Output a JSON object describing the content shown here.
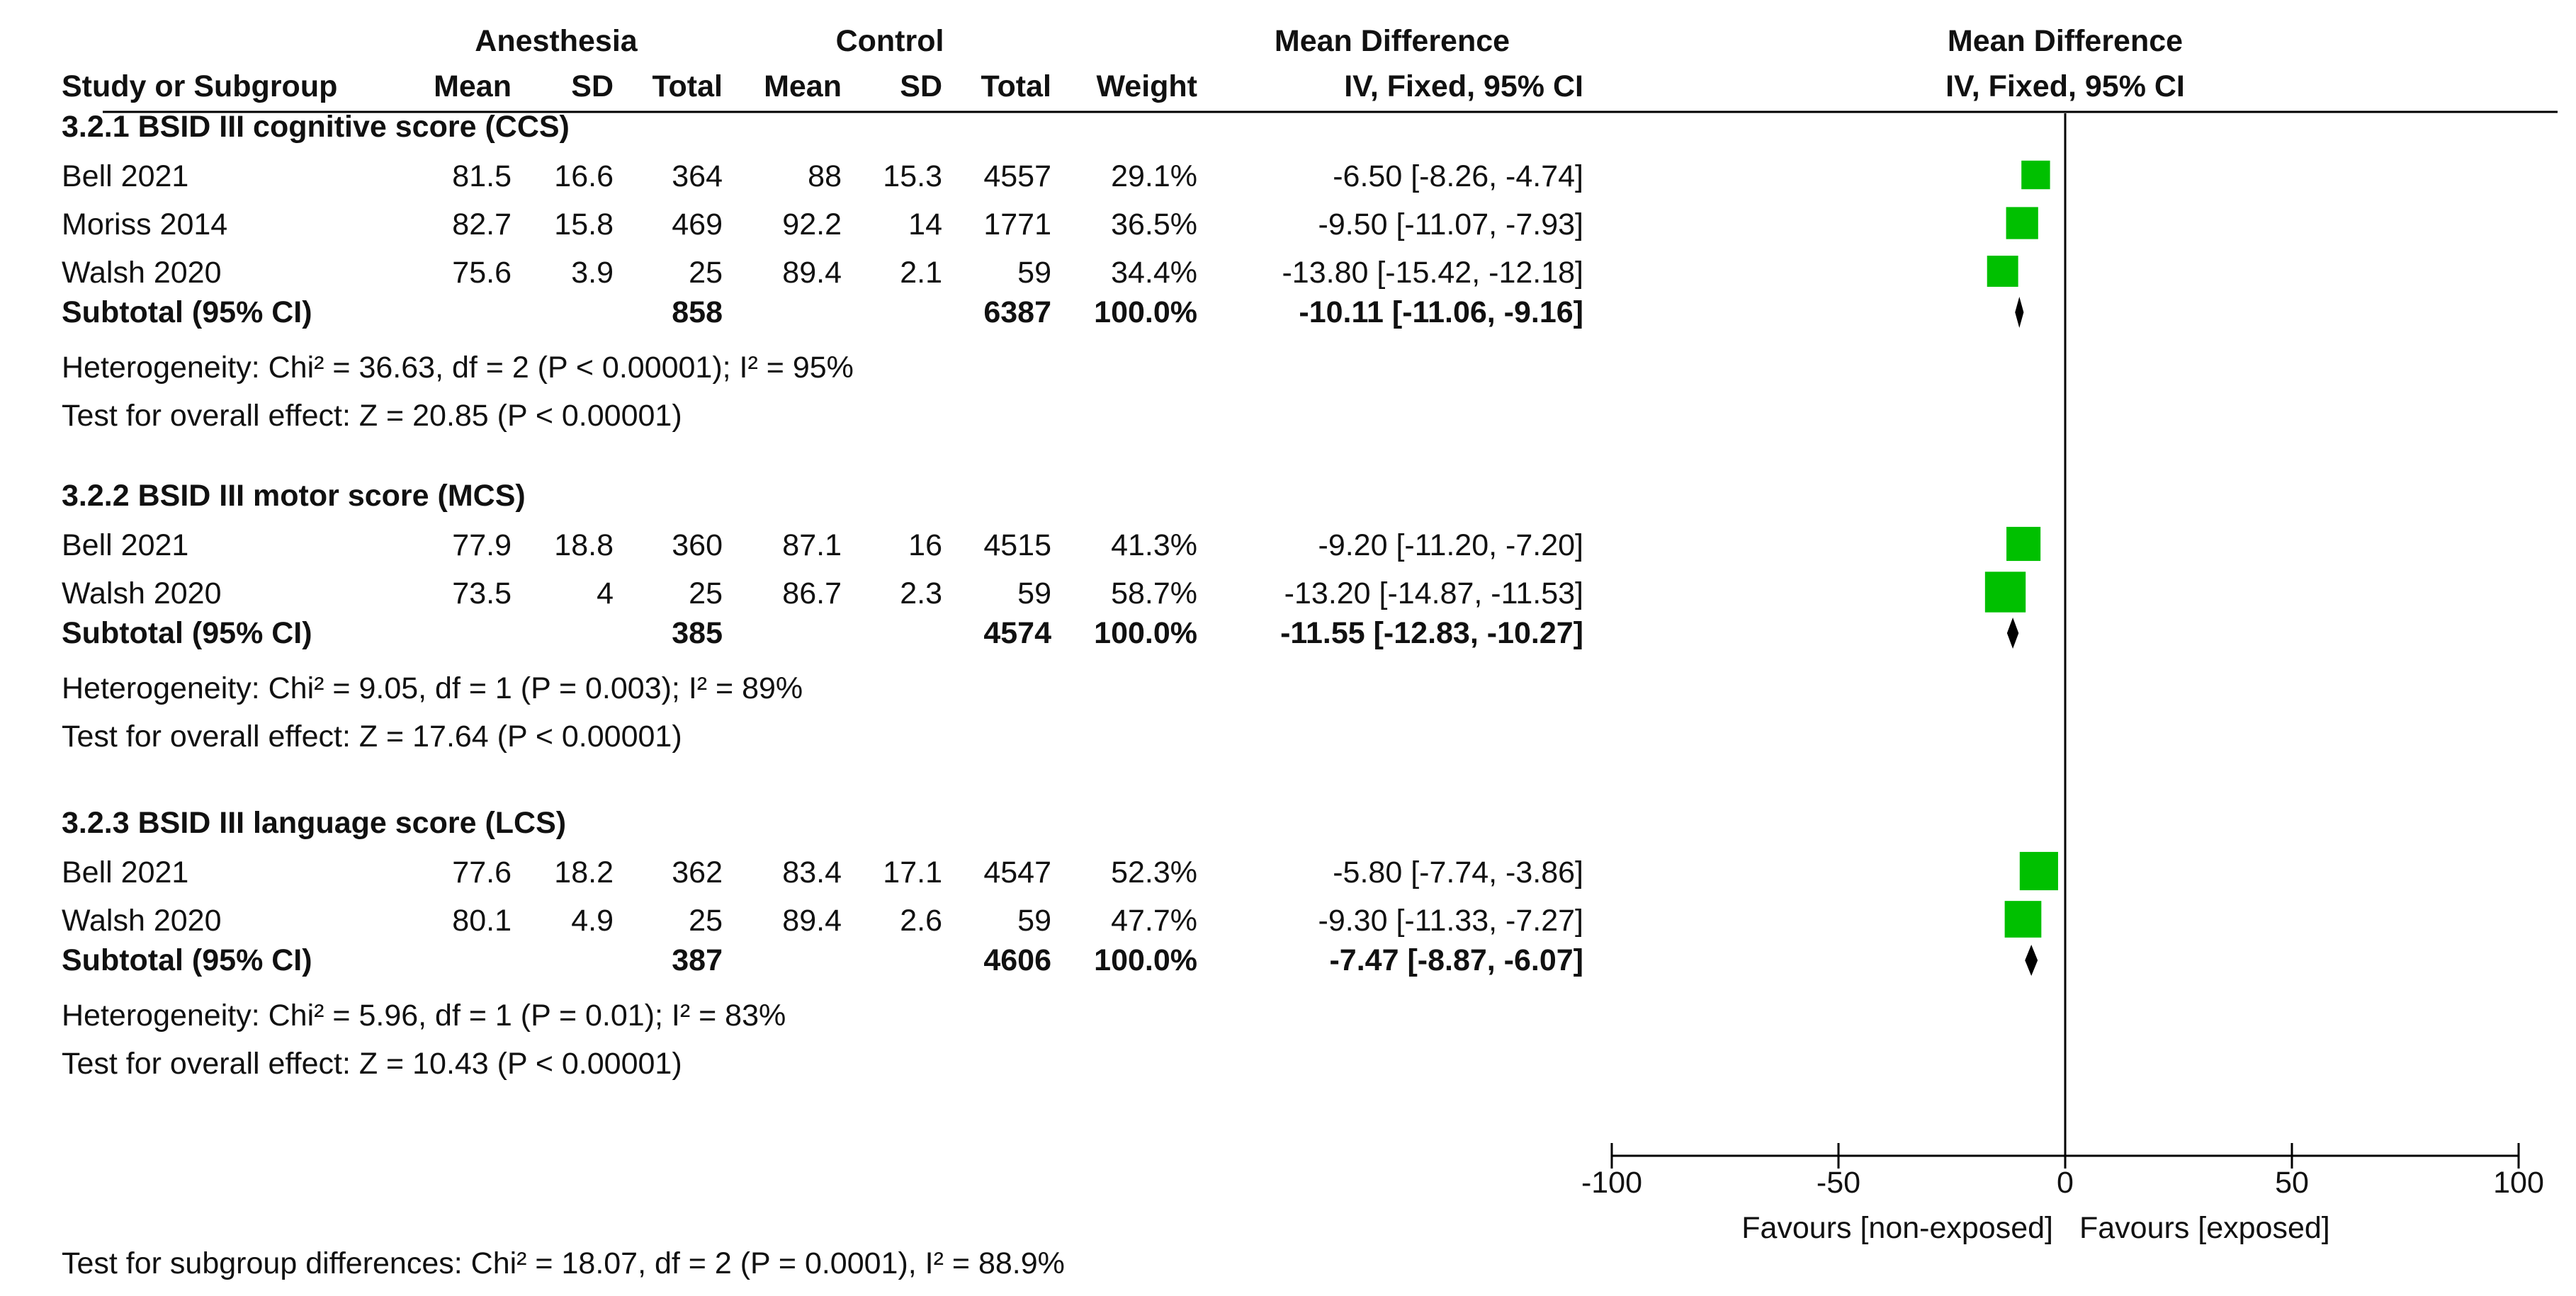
{
  "chart_data": {
    "type": "forest",
    "title": "",
    "header": {
      "group1": "Anesthesia",
      "group2": "Control",
      "col_study": "Study or Subgroup",
      "col_mean": "Mean",
      "col_sd": "SD",
      "col_total": "Total",
      "col_weight": "Weight",
      "col_md": "Mean Difference",
      "col_md_method": "IV, Fixed, 95% CI",
      "plot_title": "Mean Difference",
      "plot_method": "IV, Fixed, 95% CI"
    },
    "subgroups": [
      {
        "title": "3.2.1 BSID III cognitive score (CCS)",
        "studies": [
          {
            "name": "Bell 2021",
            "mean1": "81.5",
            "sd1": "16.6",
            "n1": "364",
            "mean2": "88",
            "sd2": "15.3",
            "n2": "4557",
            "weight": "29.1%",
            "ci_text": "-6.50 [-8.26, -4.74]",
            "md": -6.5,
            "lo": -8.26,
            "hi": -4.74,
            "w": 29.1
          },
          {
            "name": "Moriss 2014",
            "mean1": "82.7",
            "sd1": "15.8",
            "n1": "469",
            "mean2": "92.2",
            "sd2": "14",
            "n2": "1771",
            "weight": "36.5%",
            "ci_text": "-9.50 [-11.07, -7.93]",
            "md": -9.5,
            "lo": -11.07,
            "hi": -7.93,
            "w": 36.5
          },
          {
            "name": "Walsh 2020",
            "mean1": "75.6",
            "sd1": "3.9",
            "n1": "25",
            "mean2": "89.4",
            "sd2": "2.1",
            "n2": "59",
            "weight": "34.4%",
            "ci_text": "-13.80 [-15.42, -12.18]",
            "md": -13.8,
            "lo": -15.42,
            "hi": -12.18,
            "w": 34.4
          }
        ],
        "subtotal": {
          "label": "Subtotal (95% CI)",
          "n1": "858",
          "n2": "6387",
          "weight": "100.0%",
          "ci_text": "-10.11 [-11.06, -9.16]",
          "md": -10.11,
          "lo": -11.06,
          "hi": -9.16
        },
        "heterogeneity": "Heterogeneity: Chi² = 36.63, df = 2 (P < 0.00001); I² = 95%",
        "overall": "Test for overall effect: Z = 20.85 (P < 0.00001)"
      },
      {
        "title": "3.2.2 BSID III motor score (MCS)",
        "studies": [
          {
            "name": "Bell 2021",
            "mean1": "77.9",
            "sd1": "18.8",
            "n1": "360",
            "mean2": "87.1",
            "sd2": "16",
            "n2": "4515",
            "weight": "41.3%",
            "ci_text": "-9.20 [-11.20, -7.20]",
            "md": -9.2,
            "lo": -11.2,
            "hi": -7.2,
            "w": 41.3
          },
          {
            "name": "Walsh 2020",
            "mean1": "73.5",
            "sd1": "4",
            "n1": "25",
            "mean2": "86.7",
            "sd2": "2.3",
            "n2": "59",
            "weight": "58.7%",
            "ci_text": "-13.20 [-14.87, -11.53]",
            "md": -13.2,
            "lo": -14.87,
            "hi": -11.53,
            "w": 58.7
          }
        ],
        "subtotal": {
          "label": "Subtotal (95% CI)",
          "n1": "385",
          "n2": "4574",
          "weight": "100.0%",
          "ci_text": "-11.55 [-12.83, -10.27]",
          "md": -11.55,
          "lo": -12.83,
          "hi": -10.27
        },
        "heterogeneity": "Heterogeneity: Chi² = 9.05, df = 1 (P = 0.003); I² = 89%",
        "overall": "Test for overall effect: Z = 17.64 (P < 0.00001)"
      },
      {
        "title": "3.2.3 BSID III language score (LCS)",
        "studies": [
          {
            "name": "Bell 2021",
            "mean1": "77.6",
            "sd1": "18.2",
            "n1": "362",
            "mean2": "83.4",
            "sd2": "17.1",
            "n2": "4547",
            "weight": "52.3%",
            "ci_text": "-5.80 [-7.74, -3.86]",
            "md": -5.8,
            "lo": -7.74,
            "hi": -3.86,
            "w": 52.3
          },
          {
            "name": "Walsh 2020",
            "mean1": "80.1",
            "sd1": "4.9",
            "n1": "25",
            "mean2": "89.4",
            "sd2": "2.6",
            "n2": "59",
            "weight": "47.7%",
            "ci_text": "-9.30 [-11.33, -7.27]",
            "md": -9.3,
            "lo": -11.33,
            "hi": -7.27,
            "w": 47.7
          }
        ],
        "subtotal": {
          "label": "Subtotal (95% CI)",
          "n1": "387",
          "n2": "4606",
          "weight": "100.0%",
          "ci_text": "-7.47 [-8.87, -6.07]",
          "md": -7.47,
          "lo": -8.87,
          "hi": -6.07
        },
        "heterogeneity": "Heterogeneity: Chi² = 5.96, df = 1 (P = 0.01); I² = 83%",
        "overall": "Test for overall effect: Z = 10.43 (P < 0.00001)"
      }
    ],
    "axis": {
      "xlim": [
        -100,
        100
      ],
      "ticks": [
        -100,
        -50,
        0,
        50,
        100
      ],
      "tick_labels": [
        "-100",
        "-50",
        "0",
        "50",
        "100"
      ]
    },
    "favours_left": "Favours [non-exposed]",
    "favours_right": "Favours [exposed]",
    "subgroup_test": "Test for subgroup differences: Chi² = 18.07, df = 2 (P = 0.0001), I² = 88.9%",
    "colors": {
      "square": "#00c000",
      "diamond": "#000000",
      "text": "#111111"
    }
  }
}
